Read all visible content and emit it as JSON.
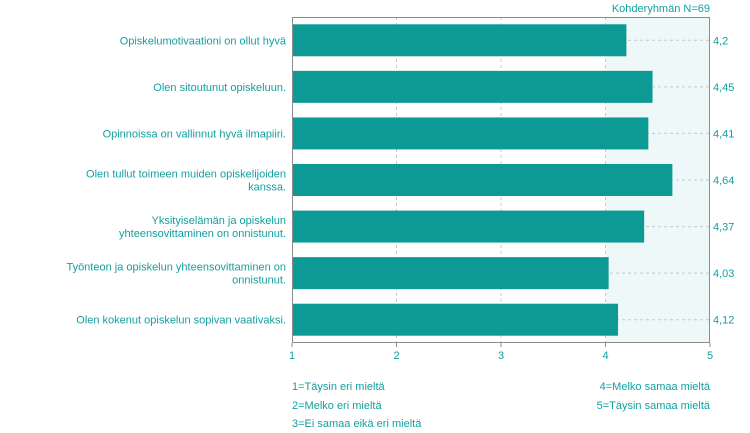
{
  "header": {
    "group_size": "Kohderyhmän N=69"
  },
  "chart_data": {
    "type": "bar",
    "orientation": "horizontal",
    "categories": [
      [
        "Opiskelumotivaationi on ollut hyvä"
      ],
      [
        "Olen sitoutunut opiskeluun."
      ],
      [
        "Opinnoissa on vallinnut hyvä ilmapiiri."
      ],
      [
        "Olen tullut toimeen muiden opiskelijoiden",
        "kanssa."
      ],
      [
        "Yksityiselämän ja opiskelun",
        "yhteensovittaminen on onnistunut."
      ],
      [
        "Työnteon ja opiskelun yhteensovittaminen on",
        "onnistunut."
      ],
      [
        "Olen kokenut opiskelun sopivan vaativaksi."
      ]
    ],
    "values": [
      4.2,
      4.45,
      4.41,
      4.64,
      4.37,
      4.03,
      4.12
    ],
    "value_labels": [
      "4,2",
      "4,45",
      "4,41",
      "4,64",
      "4,37",
      "4,03",
      "4,12"
    ],
    "xlim": [
      1,
      5
    ],
    "xticks": [
      "1",
      "2",
      "3",
      "4",
      "5"
    ],
    "shaded_region": [
      4,
      5
    ],
    "grid": true,
    "colors": {
      "bar": "#0e9a94",
      "text": "#14a0a0",
      "frame": "#8c8c8c",
      "grid": "#c8c8c8",
      "shade": "#eef8f8"
    }
  },
  "legend": {
    "left": [
      "1=Täysin eri mieltä",
      "2=Melko eri mieltä",
      "3=Ei samaa eikä eri mieltä"
    ],
    "right": [
      "4=Melko samaa mieltä",
      "5=Täysin samaa mieltä"
    ]
  }
}
